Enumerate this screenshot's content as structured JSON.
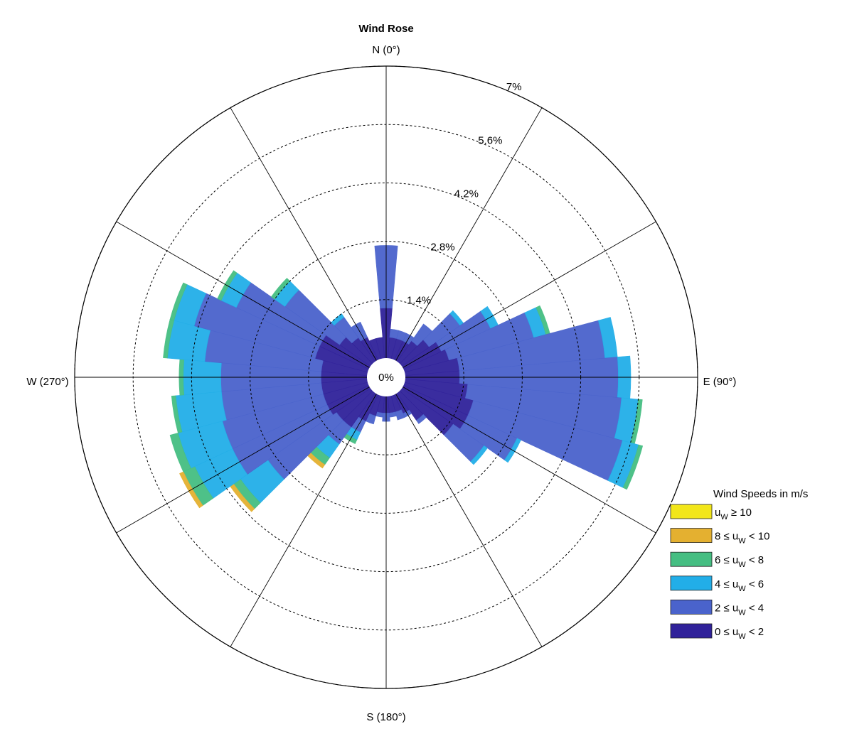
{
  "chart_data": {
    "type": "wind-rose",
    "title": "Wind Rose",
    "direction_labels": [
      "N (0°)",
      "E (90°)",
      "S (180°)",
      "W (270°)"
    ],
    "radial_tick_labels": [
      "0%",
      "1.4%",
      "2.8%",
      "4.2%",
      "5.6%",
      "7%"
    ],
    "radial_ticks": [
      1.4,
      2.8,
      4.2,
      5.6,
      7.0
    ],
    "radial_max_percent": 7.0,
    "sector_width_deg": 10,
    "sector_centers_deg": [
      0,
      10,
      20,
      30,
      40,
      50,
      60,
      70,
      80,
      90,
      100,
      110,
      120,
      130,
      140,
      150,
      160,
      170,
      180,
      190,
      200,
      210,
      220,
      230,
      240,
      250,
      260,
      270,
      280,
      290,
      300,
      310,
      320,
      330,
      340,
      350
    ],
    "legend": {
      "title": "Wind Speeds in m/s",
      "position": "lower-right",
      "entries": [
        {
          "var": "u",
          "sub": "W",
          "text": " ≥ 10",
          "pre": "",
          "color": "#f2e61a"
        },
        {
          "var": "u",
          "sub": "W",
          "text": " < 10",
          "pre": "8 ≤ ",
          "color": "#e4b030"
        },
        {
          "var": "u",
          "sub": "W",
          "text": " < 8",
          "pre": "6 ≤ ",
          "color": "#45be82"
        },
        {
          "var": "u",
          "sub": "W",
          "text": " < 6",
          "pre": "4 ≤ ",
          "color": "#22aee8"
        },
        {
          "var": "u",
          "sub": "W",
          "text": " < 4",
          "pre": "2 ≤ ",
          "color": "#4a63cc"
        },
        {
          "var": "u",
          "sub": "W",
          "text": " < 2",
          "pre": "0 ≤ ",
          "color": "#30229a"
        }
      ]
    },
    "series": [
      {
        "name": "0 ≤ uW < 2",
        "values": [
          1.2,
          0.5,
          0.5,
          0.5,
          0.6,
          0.8,
          1.0,
          1.1,
          1.3,
          1.3,
          1.5,
          1.7,
          1.7,
          1.5,
          0.8,
          0.5,
          0.4,
          0.4,
          0.4,
          0.4,
          0.5,
          0.7,
          1.0,
          1.0,
          1.1,
          1.1,
          1.1,
          1.1,
          1.1,
          1.3,
          1.3,
          0.9,
          0.7,
          0.6,
          0.5,
          0.5
        ]
      },
      {
        "name": "2 ≤ uW < 4",
        "values": [
          1.5,
          0.2,
          0.2,
          0.2,
          0.5,
          0.9,
          1.3,
          2.1,
          3.5,
          3.8,
          3.7,
          3.7,
          1.3,
          0.9,
          0.1,
          0.1,
          0.2,
          0.1,
          0.2,
          0.1,
          0.2,
          0.3,
          0.5,
          2.0,
          2.5,
          2.5,
          2.4,
          2.4,
          2.8,
          3.0,
          2.2,
          1.6,
          0.6,
          0.4,
          0.0,
          0.0
        ]
      },
      {
        "name": "4 ≤ uW < 6",
        "values": [
          0.0,
          0.0,
          0.0,
          0.0,
          0.0,
          0.1,
          0.2,
          0.3,
          0.3,
          0.3,
          0.4,
          0.4,
          0.1,
          0.1,
          0.0,
          0.0,
          0.0,
          0.0,
          0.0,
          0.0,
          0.0,
          0.2,
          0.4,
          0.8,
          1.0,
          1.1,
          1.1,
          0.9,
          0.9,
          0.5,
          0.4,
          0.3,
          0.1,
          0.0,
          0.0,
          0.0
        ]
      },
      {
        "name": "6 ≤ uW < 8",
        "values": [
          0.0,
          0.0,
          0.0,
          0.0,
          0.0,
          0.0,
          0.0,
          0.1,
          0.0,
          0.0,
          0.1,
          0.1,
          0.0,
          0.0,
          0.0,
          0.0,
          0.0,
          0.0,
          0.0,
          0.0,
          0.0,
          0.1,
          0.2,
          0.2,
          0.3,
          0.2,
          0.1,
          0.1,
          0.1,
          0.1,
          0.1,
          0.1,
          0.0,
          0.0,
          0.0,
          0.0
        ]
      },
      {
        "name": "8 ≤ uW < 10",
        "values": [
          0.0,
          0.0,
          0.0,
          0.0,
          0.0,
          0.0,
          0.0,
          0.0,
          0.0,
          0.0,
          0.0,
          0.0,
          0.0,
          0.0,
          0.0,
          0.0,
          0.0,
          0.0,
          0.0,
          0.0,
          0.0,
          0.0,
          0.1,
          0.1,
          0.1,
          0.0,
          0.0,
          0.0,
          0.0,
          0.0,
          0.0,
          0.0,
          0.0,
          0.0,
          0.0,
          0.0
        ]
      },
      {
        "name": "uW ≥ 10",
        "values": [
          0,
          0,
          0,
          0,
          0,
          0,
          0,
          0,
          0,
          0,
          0,
          0,
          0,
          0,
          0,
          0,
          0,
          0,
          0,
          0,
          0,
          0,
          0,
          0,
          0,
          0,
          0,
          0,
          0,
          0,
          0,
          0,
          0,
          0,
          0,
          0
        ]
      }
    ],
    "grid": true
  }
}
